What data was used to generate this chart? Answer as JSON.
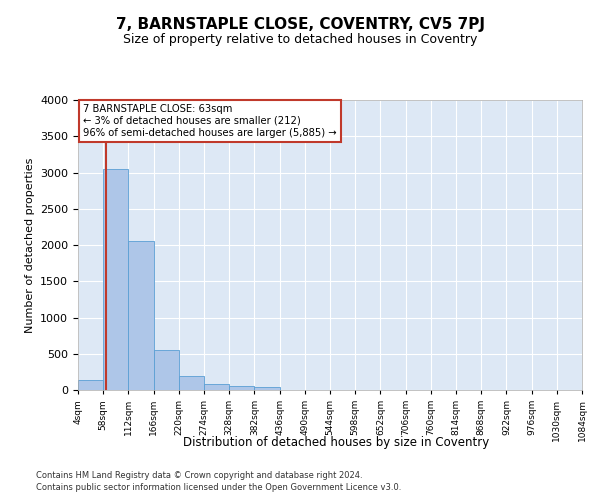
{
  "title": "7, BARNSTAPLE CLOSE, COVENTRY, CV5 7PJ",
  "subtitle": "Size of property relative to detached houses in Coventry",
  "xlabel": "Distribution of detached houses by size in Coventry",
  "ylabel": "Number of detached properties",
  "annotation_line1": "7 BARNSTAPLE CLOSE: 63sqm",
  "annotation_line2": "← 3% of detached houses are smaller (212)",
  "annotation_line3": "96% of semi-detached houses are larger (5,885) →",
  "property_size": 63,
  "bar_color": "#aec6e8",
  "bar_edge_color": "#5a9fd4",
  "line_color": "#c0392b",
  "background_color": "#dde8f5",
  "bins": [
    4,
    58,
    112,
    166,
    220,
    274,
    328,
    382,
    436,
    490,
    544,
    598,
    652,
    706,
    760,
    814,
    868,
    922,
    976,
    1030,
    1084
  ],
  "counts": [
    140,
    3050,
    2060,
    545,
    195,
    85,
    55,
    40,
    0,
    0,
    0,
    0,
    0,
    0,
    0,
    0,
    0,
    0,
    0,
    0
  ],
  "ylim": [
    0,
    4000
  ],
  "yticks": [
    0,
    500,
    1000,
    1500,
    2000,
    2500,
    3000,
    3500,
    4000
  ],
  "footer_line1": "Contains HM Land Registry data © Crown copyright and database right 2024.",
  "footer_line2": "Contains public sector information licensed under the Open Government Licence v3.0."
}
